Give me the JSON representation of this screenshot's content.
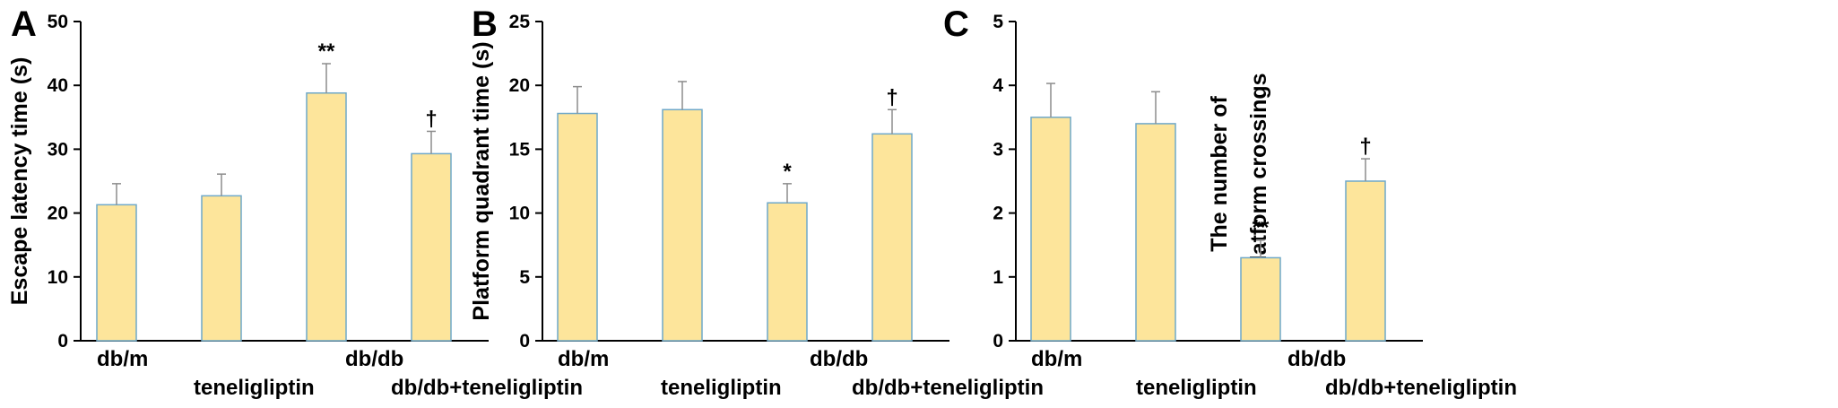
{
  "chart_data": [
    {
      "type": "bar",
      "panel": "A",
      "ylabel": "Escape latency time (s)",
      "ylim": [
        0,
        50
      ],
      "yticks": [
        0,
        10,
        20,
        30,
        40,
        50
      ],
      "categories": [
        "db/m",
        "teneligliptin",
        "db/db",
        "db/db+teneligliptin"
      ],
      "values": [
        21.3,
        22.7,
        38.8,
        29.3
      ],
      "errors": [
        3.3,
        3.4,
        4.6,
        3.5
      ],
      "significance": [
        "",
        "",
        "**",
        "†"
      ]
    },
    {
      "type": "bar",
      "panel": "B",
      "ylabel": "Platform quadrant time (s)",
      "ylim": [
        0,
        25
      ],
      "yticks": [
        0,
        5,
        10,
        15,
        20,
        25
      ],
      "categories": [
        "db/m",
        "teneligliptin",
        "db/db",
        "db/db+teneligliptin"
      ],
      "values": [
        17.8,
        18.1,
        10.8,
        16.2
      ],
      "errors": [
        2.1,
        2.2,
        1.5,
        1.9
      ],
      "significance": [
        "",
        "",
        "*",
        "†"
      ]
    },
    {
      "type": "bar",
      "panel": "C",
      "ylabel_lines": [
        "The number of",
        "platform crossings"
      ],
      "ylim": [
        0,
        5
      ],
      "yticks": [
        0,
        1,
        2,
        3,
        4,
        5
      ],
      "categories": [
        "db/m",
        "teneligliptin",
        "db/db",
        "db/db+teneligliptin"
      ],
      "values": [
        3.5,
        3.4,
        1.3,
        2.5
      ],
      "errors": [
        0.53,
        0.5,
        0.28,
        0.35
      ],
      "significance": [
        "",
        "",
        "**",
        "†"
      ]
    }
  ],
  "colors": {
    "bar_fill": "#FDE59B",
    "bar_edge": "#6FA8C9",
    "error_bar": "#8C8C8C",
    "axis": "#000000"
  }
}
